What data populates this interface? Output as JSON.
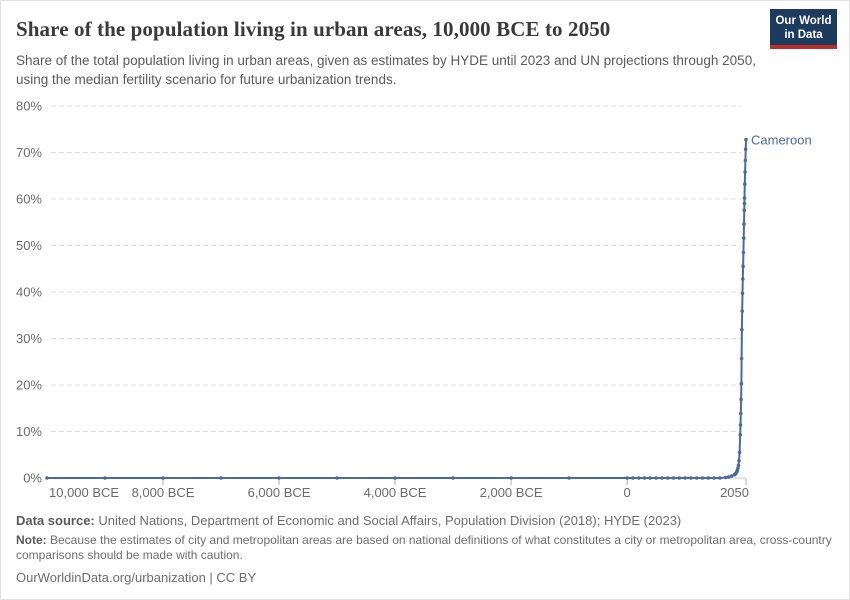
{
  "header": {
    "title": "Share of the population living in urban areas, 10,000 BCE to 2050",
    "subtitle": "Share of the total population living in urban areas, given as estimates by HYDE until 2023 and UN projections through 2050, using the median fertility scenario for future urbanization trends."
  },
  "logo": {
    "line1": "Our World",
    "line2": "in Data",
    "bg_color": "#1d3a5f",
    "bar_color": "#bc2e2a"
  },
  "footer": {
    "data_source_label": "Data source:",
    "data_source_text": " United Nations, Department of Economic and Social Affairs, Population Division (2018); HYDE (2023)",
    "note_label": "Note:",
    "note_text": " Because the estimates of city and metropolitan areas are based on national definitions of what constitutes a city or metropolitan area, cross-country comparisons should be made with caution.",
    "credit": "OurWorldinData.org/urbanization | CC BY"
  },
  "chart_data": {
    "type": "line",
    "title": "Share of the population living in urban areas, 10,000 BCE to 2050",
    "entity": "Cameroon",
    "series_color": "#4c6a9c",
    "grid": true,
    "legend_position": "entity-label-at-line-end",
    "xlabel": "",
    "ylabel": "",
    "x_domain": [
      -10000,
      2050
    ],
    "y_domain": [
      0,
      80
    ],
    "y_ticks": [
      0,
      10,
      20,
      30,
      40,
      50,
      60,
      70,
      80
    ],
    "y_tick_suffix": "%",
    "x_ticks": [
      {
        "value": -10000,
        "label": "10,000 BCE",
        "anchor": "start",
        "tick": false
      },
      {
        "value": -8000,
        "label": "8,000 BCE",
        "anchor": "middle",
        "tick": true
      },
      {
        "value": -6000,
        "label": "6,000 BCE",
        "anchor": "middle",
        "tick": true
      },
      {
        "value": -4000,
        "label": "4,000 BCE",
        "anchor": "middle",
        "tick": true
      },
      {
        "value": -2000,
        "label": "2,000 BCE",
        "anchor": "middle",
        "tick": true
      },
      {
        "value": 0,
        "label": "0",
        "anchor": "middle",
        "tick": true
      },
      {
        "value": 2050,
        "label": "2050",
        "anchor": "end",
        "tick": true
      }
    ],
    "series": [
      {
        "name": "Cameroon",
        "points": [
          [
            -10000,
            0
          ],
          [
            -9000,
            0
          ],
          [
            -8000,
            0
          ],
          [
            -7000,
            0
          ],
          [
            -6000,
            0
          ],
          [
            -5000,
            0
          ],
          [
            -4000,
            0
          ],
          [
            -3000,
            0
          ],
          [
            -2000,
            0
          ],
          [
            -1000,
            0
          ],
          [
            0,
            0
          ],
          [
            100,
            0
          ],
          [
            200,
            0
          ],
          [
            300,
            0
          ],
          [
            400,
            0
          ],
          [
            500,
            0
          ],
          [
            600,
            0
          ],
          [
            700,
            0
          ],
          [
            800,
            0
          ],
          [
            900,
            0
          ],
          [
            1000,
            0
          ],
          [
            1100,
            0
          ],
          [
            1200,
            0
          ],
          [
            1300,
            0
          ],
          [
            1400,
            0
          ],
          [
            1500,
            0
          ],
          [
            1600,
            0
          ],
          [
            1700,
            0.1
          ],
          [
            1750,
            0.2
          ],
          [
            1800,
            0.4
          ],
          [
            1850,
            0.7
          ],
          [
            1860,
            0.8
          ],
          [
            1870,
            0.9
          ],
          [
            1880,
            1.1
          ],
          [
            1890,
            1.3
          ],
          [
            1900,
            1.6
          ],
          [
            1910,
            2.1
          ],
          [
            1920,
            2.7
          ],
          [
            1930,
            3.7
          ],
          [
            1940,
            5.5
          ],
          [
            1950,
            9.3
          ],
          [
            1955,
            11.4
          ],
          [
            1960,
            13.9
          ],
          [
            1965,
            16.9
          ],
          [
            1970,
            20.3
          ],
          [
            1975,
            25.7
          ],
          [
            1980,
            31.9
          ],
          [
            1985,
            35.9
          ],
          [
            1990,
            39.7
          ],
          [
            1995,
            42.8
          ],
          [
            2000,
            45.5
          ],
          [
            2005,
            48.5
          ],
          [
            2010,
            51.6
          ],
          [
            2015,
            54.6
          ],
          [
            2020,
            57.6
          ],
          [
            2023,
            59.0
          ],
          [
            2025,
            60.2
          ],
          [
            2030,
            63.2
          ],
          [
            2035,
            65.8
          ],
          [
            2040,
            68.3
          ],
          [
            2045,
            70.7
          ],
          [
            2050,
            72.8
          ]
        ]
      }
    ]
  }
}
